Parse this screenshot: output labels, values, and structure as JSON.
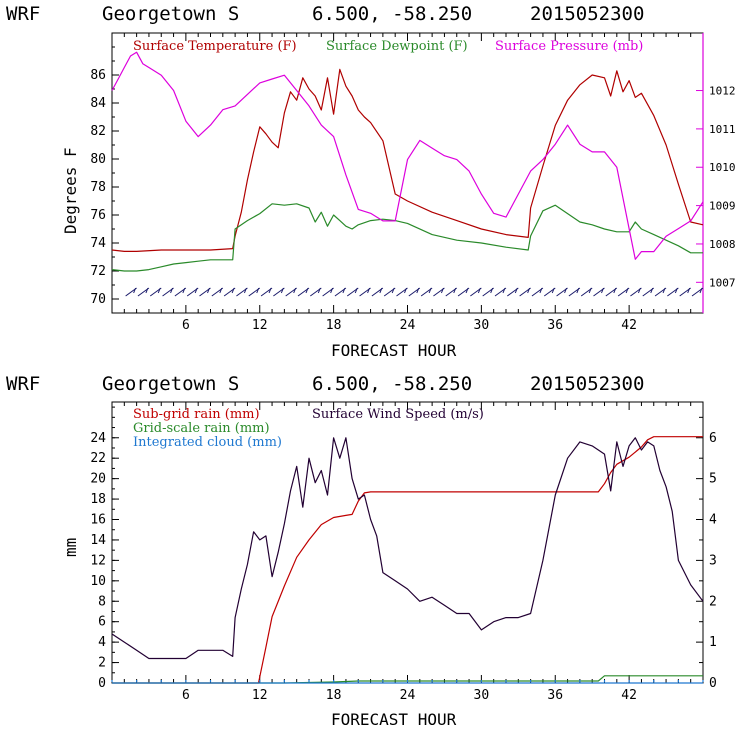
{
  "header": {
    "model": "WRF",
    "location": "Georgetown S",
    "coords": "6.500, -58.250",
    "init": "2015052300"
  },
  "colors": {
    "temperature": "#b00000",
    "dewpoint": "#2a8a2a",
    "pressure": "#dd00dd",
    "wind_barb": "#1a1a6a",
    "subgrid_rain": "#c00000",
    "gridscale_rain": "#2a8a2a",
    "cloud": "#1f78d0",
    "wind_speed": "#220033"
  },
  "chart_data": [
    {
      "type": "line",
      "header": "WRF   Georgetown S   6.500, -58.250  2015052300",
      "xlabel": "FORECAST HOUR",
      "ylabel": "Degrees F",
      "xlim": [
        0,
        48
      ],
      "ylim": [
        69,
        89
      ],
      "y2lim": [
        1006.2,
        1013.5
      ],
      "x_ticks": [
        "6",
        "12",
        "18",
        "24",
        "30",
        "36",
        "42"
      ],
      "y_ticks": [
        "70",
        "72",
        "74",
        "76",
        "78",
        "80",
        "82",
        "84",
        "86"
      ],
      "y2_ticks": [
        "1007",
        "1008",
        "1009",
        "1010",
        "1011",
        "1012"
      ],
      "legend": [
        "Surface Temperature (F)",
        "Surface Dewpoint (F)",
        "Surface Pressure (mb)"
      ],
      "series": [
        {
          "name": "Surface Temperature (F)",
          "axis": "left",
          "x": [
            0,
            1,
            2,
            4,
            6,
            8,
            9.8,
            10,
            10.5,
            11,
            11.5,
            12,
            12.5,
            13,
            13.5,
            14,
            14.5,
            15,
            15.5,
            16,
            16.5,
            17,
            17.5,
            18,
            18.5,
            19,
            19.5,
            20,
            20.5,
            21,
            22,
            23,
            24,
            26,
            28,
            30,
            32,
            33.8,
            34,
            35,
            36,
            37,
            38,
            39,
            40,
            40.5,
            41,
            41.5,
            42,
            42.5,
            43,
            44,
            45,
            46,
            47,
            48
          ],
          "y": [
            73.5,
            73.4,
            73.4,
            73.5,
            73.5,
            73.5,
            73.6,
            74.5,
            76.2,
            78.5,
            80.5,
            82.3,
            81.8,
            81.2,
            80.8,
            83.3,
            84.8,
            84.2,
            85.8,
            85.0,
            84.5,
            83.5,
            85.8,
            83.2,
            86.4,
            85.2,
            84.5,
            83.5,
            83.0,
            82.6,
            81.3,
            77.5,
            77.0,
            76.2,
            75.6,
            75.0,
            74.6,
            74.4,
            76.5,
            79.5,
            82.4,
            84.2,
            85.3,
            86.0,
            85.8,
            84.5,
            86.3,
            84.8,
            85.6,
            84.4,
            84.7,
            83.1,
            81.0,
            78.2,
            75.5,
            75.3
          ]
        },
        {
          "name": "Surface Dewpoint (F)",
          "axis": "left",
          "x": [
            0,
            1,
            2,
            3,
            4,
            5,
            6,
            7,
            8,
            9,
            9.8,
            10,
            11,
            12,
            13,
            14,
            15,
            16,
            16.5,
            17,
            17.5,
            18,
            18.5,
            19,
            19.5,
            20,
            21,
            22,
            23,
            24,
            26,
            28,
            30,
            32,
            33.8,
            34,
            35,
            36,
            37,
            38,
            39,
            40,
            41,
            42,
            42.5,
            43,
            44,
            45,
            46,
            47,
            48
          ],
          "y": [
            72.1,
            72.0,
            72.0,
            72.1,
            72.3,
            72.5,
            72.6,
            72.7,
            72.8,
            72.8,
            72.8,
            75.0,
            75.6,
            76.1,
            76.8,
            76.7,
            76.8,
            76.5,
            75.5,
            76.2,
            75.2,
            76.0,
            75.6,
            75.2,
            75.0,
            75.3,
            75.6,
            75.7,
            75.6,
            75.4,
            74.6,
            74.2,
            74.0,
            73.7,
            73.5,
            74.5,
            76.3,
            76.7,
            76.1,
            75.5,
            75.3,
            75.0,
            74.8,
            74.8,
            75.5,
            75.0,
            74.6,
            74.2,
            73.8,
            73.3,
            73.3
          ]
        },
        {
          "name": "Surface Pressure (mb)",
          "axis": "right",
          "x": [
            0,
            0.5,
            1,
            1.5,
            2,
            2.5,
            3,
            4,
            5,
            6,
            7,
            8,
            9,
            10,
            11,
            12,
            13,
            14,
            15,
            16,
            17,
            18,
            19,
            20,
            21,
            22,
            23,
            24,
            25,
            26,
            27,
            28,
            29,
            30,
            31,
            32,
            33,
            34,
            35,
            36,
            37,
            38,
            39,
            40,
            41,
            42,
            42.5,
            43,
            44,
            45,
            46,
            47,
            48
          ],
          "y": [
            1012.0,
            1012.3,
            1012.6,
            1012.9,
            1013.0,
            1012.7,
            1012.6,
            1012.4,
            1012.0,
            1011.2,
            1010.8,
            1011.1,
            1011.5,
            1011.6,
            1011.9,
            1012.2,
            1012.3,
            1012.4,
            1012.0,
            1011.6,
            1011.1,
            1010.8,
            1009.8,
            1008.9,
            1008.8,
            1008.6,
            1008.6,
            1010.2,
            1010.7,
            1010.5,
            1010.3,
            1010.2,
            1009.9,
            1009.3,
            1008.8,
            1008.7,
            1009.3,
            1009.9,
            1010.2,
            1010.6,
            1011.1,
            1010.6,
            1010.4,
            1010.4,
            1010.0,
            1008.4,
            1007.6,
            1007.8,
            1007.8,
            1008.2,
            1008.4,
            1008.6,
            1009.1
          ]
        }
      ],
      "wind_barbs": "row of barbs every forecast hour along the base of the panel"
    },
    {
      "type": "line",
      "header": "WRF   Georgetown S   6.500, -58.250  2015052300",
      "xlabel": "FORECAST HOUR",
      "ylabel": "mm",
      "xlim": [
        0,
        48
      ],
      "ylim": [
        0,
        27.5
      ],
      "y2lim": [
        0,
        6.875
      ],
      "x_ticks": [
        "6",
        "12",
        "18",
        "24",
        "30",
        "36",
        "42"
      ],
      "y_ticks": [
        "0",
        "2",
        "4",
        "6",
        "8",
        "10",
        "12",
        "14",
        "16",
        "18",
        "20",
        "22",
        "24"
      ],
      "y2_ticks": [
        "0",
        "1",
        "2",
        "3",
        "4",
        "5",
        "6"
      ],
      "legend": [
        "Sub-grid rain (mm)",
        "Surface Wind Speed (m/s)",
        "Grid-scale rain (mm)",
        "Integrated cloud (mm)"
      ],
      "series": [
        {
          "name": "Sub-grid rain (mm)",
          "axis": "left",
          "x": [
            0,
            11.9,
            12.5,
            13,
            14,
            15,
            16,
            17,
            18,
            19,
            19.5,
            20,
            20.5,
            21,
            30,
            39.5,
            40,
            40.5,
            41,
            42,
            43,
            43.5,
            44,
            48
          ],
          "y": [
            0,
            0,
            3.5,
            6.5,
            9.5,
            12.3,
            14.0,
            15.5,
            16.2,
            16.4,
            16.5,
            17.8,
            18.6,
            18.7,
            18.7,
            18.7,
            19.5,
            20.6,
            21.4,
            22.1,
            23.1,
            23.8,
            24.1,
            24.1
          ]
        },
        {
          "name": "Surface Wind Speed (m/s)",
          "axis": "right",
          "x": [
            0,
            1,
            2,
            3,
            4,
            5,
            6,
            7,
            8,
            9,
            9.8,
            10,
            10.5,
            11,
            11.5,
            12,
            12.5,
            13,
            13.5,
            14,
            14.5,
            15,
            15.5,
            16,
            16.5,
            17,
            17.5,
            18,
            18.5,
            19,
            19.5,
            20,
            20.5,
            21,
            21.5,
            22,
            23,
            24,
            25,
            26,
            27,
            28,
            29,
            30,
            31,
            32,
            33,
            34,
            35,
            36,
            37,
            38,
            39,
            40,
            40.5,
            41,
            41.5,
            42,
            42.5,
            43,
            43.5,
            44,
            44.5,
            45,
            45.5,
            46,
            47,
            48
          ],
          "y": [
            1.2,
            1.0,
            0.8,
            0.6,
            0.6,
            0.6,
            0.6,
            0.8,
            0.8,
            0.8,
            0.65,
            1.6,
            2.3,
            2.9,
            3.7,
            3.5,
            3.6,
            2.6,
            3.2,
            3.9,
            4.7,
            5.3,
            4.3,
            5.5,
            4.9,
            5.2,
            4.6,
            6.0,
            5.5,
            6.0,
            5.0,
            4.5,
            4.6,
            4.0,
            3.6,
            2.7,
            2.5,
            2.3,
            2.0,
            2.1,
            1.9,
            1.7,
            1.7,
            1.3,
            1.5,
            1.6,
            1.6,
            1.7,
            3.0,
            4.6,
            5.5,
            5.9,
            5.8,
            5.6,
            4.7,
            5.9,
            5.3,
            5.8,
            6.0,
            5.7,
            5.9,
            5.8,
            5.2,
            4.8,
            4.2,
            3.0,
            2.4,
            2.0
          ]
        },
        {
          "name": "Grid-scale rain (mm)",
          "axis": "left",
          "x": [
            0,
            14,
            16,
            18,
            20,
            30,
            38,
            39.5,
            40,
            48
          ],
          "y": [
            0,
            0,
            0.05,
            0.1,
            0.2,
            0.2,
            0.2,
            0.2,
            0.7,
            0.7
          ]
        },
        {
          "name": "Integrated cloud (mm)",
          "axis": "left",
          "x": [
            0,
            48
          ],
          "y": [
            0,
            0
          ]
        }
      ]
    }
  ]
}
